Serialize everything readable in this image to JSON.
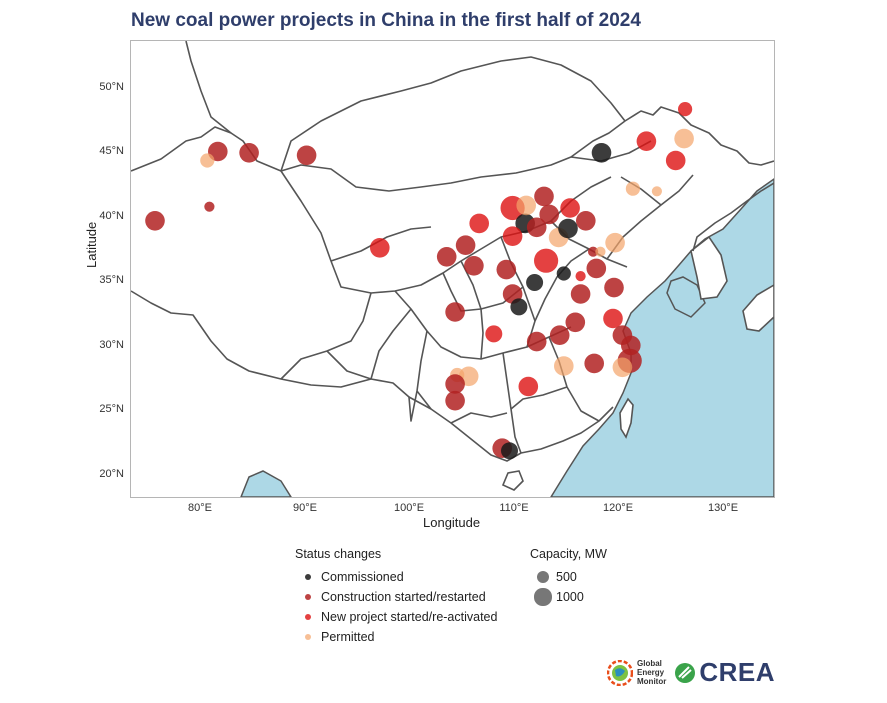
{
  "title": "New coal power projects in China in the first half of 2024",
  "axes": {
    "xlabel": "Longitude",
    "ylabel": "Latitude",
    "xlim": [
      73.5,
      135
    ],
    "ylim": [
      18,
      53.5
    ],
    "x_ticks": [
      "80°E",
      "90°E",
      "100°E",
      "110°E",
      "120°E",
      "130°E"
    ],
    "y_ticks": [
      "20°N",
      "25°N",
      "30°N",
      "35°N",
      "40°N",
      "45°N",
      "50°N"
    ]
  },
  "colors": {
    "sea": "#add8e6",
    "border": "#555555",
    "title": "#2f3e6b",
    "commissioned": "#1a1a1a",
    "construction": "#b22222",
    "new_project": "#dd1111",
    "permitted": "#f4a46a"
  },
  "legend": {
    "status_title": "Status changes",
    "status_items": [
      {
        "label": "Commissioned",
        "key": "commissioned"
      },
      {
        "label": "Construction started/restarted",
        "key": "construction"
      },
      {
        "label": "New project started/re-activated",
        "key": "new_project"
      },
      {
        "label": "Permitted",
        "key": "permitted"
      }
    ],
    "capacity_title": "Capacity, MW",
    "capacity_items": [
      {
        "label": "500",
        "mw": 500
      },
      {
        "label": "1000",
        "mw": 1000
      }
    ]
  },
  "logos": {
    "gem": "Global Energy Monitor",
    "gem_lines": [
      "Global",
      "Energy",
      "Monitor"
    ],
    "crea": "CREA"
  },
  "chart_data": {
    "type": "scatter",
    "x_field": "longitude",
    "y_field": "latitude",
    "size_field": "capacity_mw",
    "points": [
      {
        "lon": 75.8,
        "lat": 39.5,
        "mw": 1320,
        "status": "construction"
      },
      {
        "lon": 81.0,
        "lat": 40.6,
        "mw": 350,
        "status": "construction"
      },
      {
        "lon": 81.8,
        "lat": 44.9,
        "mw": 1320,
        "status": "construction"
      },
      {
        "lon": 80.8,
        "lat": 44.2,
        "mw": 700,
        "status": "permitted"
      },
      {
        "lon": 84.8,
        "lat": 44.8,
        "mw": 1320,
        "status": "construction"
      },
      {
        "lon": 90.3,
        "lat": 44.6,
        "mw": 1320,
        "status": "construction"
      },
      {
        "lon": 97.3,
        "lat": 37.4,
        "mw": 1320,
        "status": "new_project"
      },
      {
        "lon": 103.7,
        "lat": 36.7,
        "mw": 1320,
        "status": "construction"
      },
      {
        "lon": 105.5,
        "lat": 37.6,
        "mw": 1320,
        "status": "construction"
      },
      {
        "lon": 106.3,
        "lat": 36.0,
        "mw": 1320,
        "status": "construction"
      },
      {
        "lon": 106.8,
        "lat": 39.3,
        "mw": 1320,
        "status": "new_project"
      },
      {
        "lon": 109.4,
        "lat": 35.7,
        "mw": 1320,
        "status": "construction"
      },
      {
        "lon": 110.0,
        "lat": 40.5,
        "mw": 2000,
        "status": "new_project"
      },
      {
        "lon": 111.2,
        "lat": 39.3,
        "mw": 1320,
        "status": "commissioned"
      },
      {
        "lon": 111.3,
        "lat": 40.7,
        "mw": 1320,
        "status": "permitted"
      },
      {
        "lon": 113.0,
        "lat": 41.4,
        "mw": 1320,
        "status": "construction"
      },
      {
        "lon": 112.3,
        "lat": 39.0,
        "mw": 1320,
        "status": "construction"
      },
      {
        "lon": 113.5,
        "lat": 40.0,
        "mw": 1320,
        "status": "construction"
      },
      {
        "lon": 115.5,
        "lat": 40.5,
        "mw": 1320,
        "status": "new_project"
      },
      {
        "lon": 117.0,
        "lat": 39.5,
        "mw": 1320,
        "status": "construction"
      },
      {
        "lon": 110.0,
        "lat": 38.3,
        "mw": 1320,
        "status": "new_project"
      },
      {
        "lon": 113.2,
        "lat": 36.4,
        "mw": 2000,
        "status": "new_project"
      },
      {
        "lon": 114.4,
        "lat": 38.2,
        "mw": 1320,
        "status": "permitted"
      },
      {
        "lon": 115.3,
        "lat": 38.9,
        "mw": 1320,
        "status": "commissioned"
      },
      {
        "lon": 112.1,
        "lat": 34.7,
        "mw": 1000,
        "status": "commissioned"
      },
      {
        "lon": 114.9,
        "lat": 35.4,
        "mw": 700,
        "status": "commissioned"
      },
      {
        "lon": 116.5,
        "lat": 35.2,
        "mw": 350,
        "status": "new_project"
      },
      {
        "lon": 117.7,
        "lat": 37.1,
        "mw": 350,
        "status": "construction"
      },
      {
        "lon": 118.0,
        "lat": 35.8,
        "mw": 1320,
        "status": "construction"
      },
      {
        "lon": 119.8,
        "lat": 37.8,
        "mw": 1320,
        "status": "permitted"
      },
      {
        "lon": 118.4,
        "lat": 37.1,
        "mw": 350,
        "status": "permitted"
      },
      {
        "lon": 110.0,
        "lat": 33.8,
        "mw": 1320,
        "status": "construction"
      },
      {
        "lon": 110.6,
        "lat": 32.8,
        "mw": 1000,
        "status": "commissioned"
      },
      {
        "lon": 116.5,
        "lat": 33.8,
        "mw": 1320,
        "status": "construction"
      },
      {
        "lon": 119.7,
        "lat": 34.3,
        "mw": 1320,
        "status": "construction"
      },
      {
        "lon": 119.6,
        "lat": 31.9,
        "mw": 1320,
        "status": "new_project"
      },
      {
        "lon": 116.0,
        "lat": 31.6,
        "mw": 1320,
        "status": "construction"
      },
      {
        "lon": 120.5,
        "lat": 30.6,
        "mw": 1320,
        "status": "construction"
      },
      {
        "lon": 121.3,
        "lat": 29.8,
        "mw": 1320,
        "status": "construction"
      },
      {
        "lon": 121.2,
        "lat": 28.6,
        "mw": 2000,
        "status": "construction"
      },
      {
        "lon": 120.5,
        "lat": 28.1,
        "mw": 1320,
        "status": "permitted"
      },
      {
        "lon": 104.5,
        "lat": 32.4,
        "mw": 1320,
        "status": "construction"
      },
      {
        "lon": 108.2,
        "lat": 30.7,
        "mw": 1000,
        "status": "new_project"
      },
      {
        "lon": 112.3,
        "lat": 30.1,
        "mw": 1320,
        "status": "construction"
      },
      {
        "lon": 114.5,
        "lat": 30.6,
        "mw": 1320,
        "status": "construction"
      },
      {
        "lon": 117.8,
        "lat": 28.4,
        "mw": 1320,
        "status": "construction"
      },
      {
        "lon": 114.9,
        "lat": 28.2,
        "mw": 1320,
        "status": "permitted"
      },
      {
        "lon": 111.5,
        "lat": 26.6,
        "mw": 1320,
        "status": "new_project"
      },
      {
        "lon": 105.8,
        "lat": 27.4,
        "mw": 1320,
        "status": "permitted"
      },
      {
        "lon": 104.7,
        "lat": 27.5,
        "mw": 700,
        "status": "permitted"
      },
      {
        "lon": 104.5,
        "lat": 26.8,
        "mw": 1320,
        "status": "construction"
      },
      {
        "lon": 104.5,
        "lat": 25.5,
        "mw": 1320,
        "status": "construction"
      },
      {
        "lon": 109.0,
        "lat": 21.8,
        "mw": 1320,
        "status": "construction"
      },
      {
        "lon": 109.7,
        "lat": 21.6,
        "mw": 1000,
        "status": "commissioned"
      },
      {
        "lon": 118.5,
        "lat": 44.8,
        "mw": 1320,
        "status": "commissioned"
      },
      {
        "lon": 122.8,
        "lat": 45.7,
        "mw": 1320,
        "status": "new_project"
      },
      {
        "lon": 126.5,
        "lat": 48.2,
        "mw": 700,
        "status": "new_project"
      },
      {
        "lon": 126.4,
        "lat": 45.9,
        "mw": 1320,
        "status": "permitted"
      },
      {
        "lon": 125.6,
        "lat": 44.2,
        "mw": 1320,
        "status": "new_project"
      },
      {
        "lon": 121.5,
        "lat": 42.0,
        "mw": 700,
        "status": "permitted"
      },
      {
        "lon": 123.8,
        "lat": 41.8,
        "mw": 350,
        "status": "permitted"
      }
    ]
  }
}
